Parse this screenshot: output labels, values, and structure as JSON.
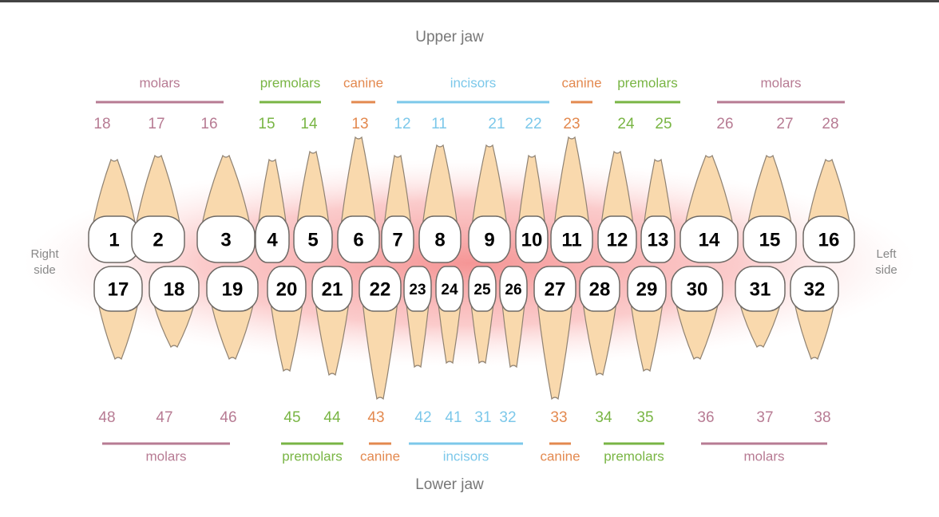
{
  "upper_jaw": {
    "title": "Upper jaw",
    "groups": [
      "molars",
      "premolars",
      "canine",
      "incisors",
      "canine",
      "premolars",
      "molars"
    ],
    "fdi_numbers": [
      "18",
      "17",
      "16",
      "15",
      "14",
      "13",
      "12",
      "11",
      "21",
      "22",
      "23",
      "24",
      "25",
      "26",
      "27",
      "28"
    ],
    "teeth": [
      "1",
      "2",
      "3",
      "4",
      "5",
      "6",
      "7",
      "8",
      "9",
      "10",
      "11",
      "12",
      "13",
      "14",
      "15",
      "16"
    ]
  },
  "lower_jaw": {
    "title": "Lower jaw",
    "groups": [
      "molars",
      "premolars",
      "canine",
      "incisors",
      "canine",
      "premolars",
      "molars"
    ],
    "fdi_numbers": [
      "48",
      "47",
      "46",
      "45",
      "44",
      "43",
      "42",
      "41",
      "31",
      "32",
      "33",
      "34",
      "35",
      "36",
      "37",
      "38"
    ],
    "teeth": [
      "17",
      "18",
      "19",
      "20",
      "21",
      "22",
      "23",
      "24",
      "25",
      "26",
      "27",
      "28",
      "29",
      "30",
      "31",
      "32"
    ]
  },
  "sides": {
    "right": "Right side",
    "left": "Left side"
  }
}
